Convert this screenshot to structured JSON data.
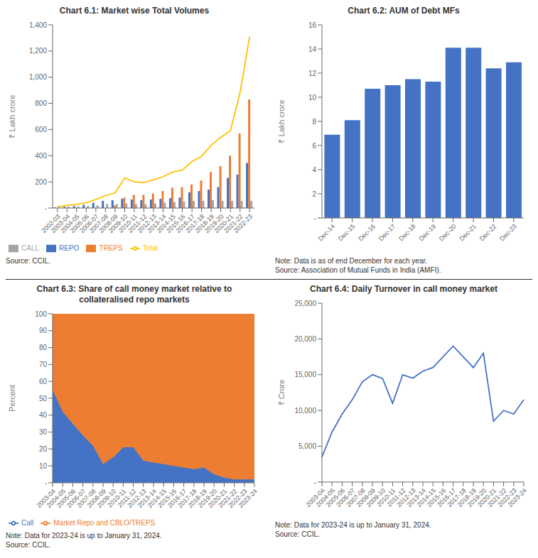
{
  "chart_data": [
    {
      "type": "bar",
      "title": "Chart 6.1: Market wise Total Volumes",
      "y_label": "₹ Lakh crore",
      "annotations": [
        "Source: CCIL."
      ],
      "categories": [
        "2002-03",
        "2003-04",
        "2004-05",
        "2005-06",
        "2006-07",
        "2007-08",
        "2008-09",
        "2009-10",
        "2010-11",
        "2011-12",
        "2012-13",
        "2013-14",
        "2014-15",
        "2015-16",
        "2016-17",
        "2017-18",
        "2018-19",
        "2019-20",
        "2020-21",
        "2021-22",
        "2022-23"
      ],
      "series": [
        {
          "name": "REPO",
          "type": "bar",
          "color": "#4472C4",
          "values": [
            5,
            10,
            15,
            25,
            40,
            55,
            60,
            70,
            65,
            60,
            65,
            70,
            75,
            80,
            120,
            130,
            140,
            160,
            230,
            255,
            345
          ]
        },
        {
          "name": "TREPS",
          "type": "bar",
          "color": "#ED7D31",
          "values": [
            0,
            0,
            0,
            0,
            0,
            0,
            20,
            80,
            100,
            100,
            110,
            130,
            155,
            160,
            180,
            210,
            275,
            320,
            400,
            570,
            830
          ]
        },
        {
          "name": "CALL",
          "type": "bar",
          "color": "#A5A5A5",
          "values": [
            5,
            10,
            12,
            15,
            20,
            30,
            30,
            35,
            30,
            30,
            35,
            40,
            45,
            50,
            55,
            55,
            60,
            55,
            55,
            55,
            55
          ]
        },
        {
          "name": "Total",
          "type": "line",
          "color": "#FFC000",
          "values": [
            10,
            20,
            28,
            40,
            65,
            95,
            115,
            230,
            200,
            195,
            215,
            240,
            275,
            290,
            355,
            395,
            480,
            540,
            590,
            880,
            1310
          ]
        }
      ],
      "ylim": [
        0,
        1400
      ],
      "yticks": [
        {
          "value": 0,
          "label": "-"
        },
        200,
        400,
        600,
        800,
        {
          "value": 1000,
          "label": "1,000"
        },
        {
          "value": 1200,
          "label": "1,200"
        },
        {
          "value": 1400,
          "label": "1,400"
        }
      ],
      "legend": "bottom",
      "grid": false
    },
    {
      "type": "bar",
      "title": "Chart 6.2: AUM of Debt MFs",
      "y_label": "₹ Lakh crore",
      "annotations": [
        "Note: Data is as of end December for each year.",
        "Source: Association of Mutual Funds in India (AMFI)."
      ],
      "categories": [
        "Dec-14",
        "Dec-15",
        "Dec-16",
        "Dec-17",
        "Dec-18",
        "Dec-19",
        "Dec-20",
        "Dec-21",
        "Dec-22",
        "Dec-23"
      ],
      "values": [
        6.9,
        8.1,
        10.7,
        11.0,
        11.5,
        11.3,
        14.1,
        14.1,
        12.4,
        12.9
      ],
      "color": "#4472C4",
      "ylim": [
        0,
        16
      ],
      "yticks": [
        {
          "value": 0,
          "label": "-"
        },
        2,
        4,
        6,
        8,
        10,
        12,
        14,
        16
      ],
      "grid": false
    },
    {
      "type": "area",
      "title": "Chart 6.3: Share of call money market relative to\ncollateralised repo markets",
      "y_label": "Percent",
      "annotations": [
        "Note: Data for 2023-24 is up to January 31, 2024.",
        "Source: CCIL."
      ],
      "categories": [
        "2003-04",
        "2004-05",
        "2005-06",
        "2006-07",
        "2007-08",
        "2008-09",
        "2009-10",
        "2010-11",
        "2011-12",
        "2012-13",
        "2013-14",
        "2014-15",
        "2015-16",
        "2016-17",
        "2017-18",
        "2018-19",
        "2019-20",
        "2020-21",
        "2021-22",
        "2022-23",
        "2023-24"
      ],
      "series": [
        {
          "name": "Call",
          "color": "#4472C4",
          "values": [
            55,
            42,
            35,
            28,
            22,
            11,
            15,
            21,
            21,
            13,
            12,
            11,
            10,
            9,
            8,
            9,
            5,
            3,
            2,
            2,
            2
          ]
        },
        {
          "name": "Market Repo and CBLO/TREPS",
          "color": "#ED7D31",
          "values": [
            45,
            58,
            65,
            72,
            78,
            89,
            85,
            79,
            79,
            87,
            88,
            89,
            90,
            91,
            92,
            91,
            95,
            97,
            98,
            98,
            98
          ]
        }
      ],
      "stacked": true,
      "ylim": [
        0,
        100
      ],
      "yticks": [
        {
          "value": 0,
          "label": "-"
        },
        10,
        20,
        30,
        40,
        50,
        60,
        70,
        80,
        90,
        100
      ],
      "legend": "bottom",
      "grid": false
    },
    {
      "type": "line",
      "title": "Chart 6.4: Daily Turnover in call money market",
      "y_label": "₹ Crore",
      "annotations": [
        "Note: Data for 2023-24 is up to January 31, 2024.",
        "Source: CCIL."
      ],
      "categories": [
        "2003-04",
        "2004-05",
        "2005-06",
        "2006-07",
        "2007-08",
        "2008-09",
        "2009-10",
        "2010-11",
        "2011-12",
        "2012-13",
        "2013-14",
        "2014-15",
        "2015-16",
        "2016-17",
        "2017-18",
        "2018-19",
        "2019-20",
        "2020-21",
        "2021-22",
        "2022-23",
        "2023-24"
      ],
      "values": [
        3500,
        7000,
        9500,
        11500,
        14000,
        15000,
        14500,
        11000,
        15000,
        14500,
        15500,
        16000,
        17500,
        19000,
        17500,
        16000,
        18000,
        8500,
        10000,
        9500,
        11500
      ],
      "color": "#4472C4",
      "ylim": [
        0,
        25000
      ],
      "yticks": [
        {
          "value": 0,
          "label": "-"
        },
        {
          "value": 5000,
          "label": "5,000"
        },
        {
          "value": 10000,
          "label": "10,000"
        },
        {
          "value": 15000,
          "label": "15,000"
        },
        {
          "value": 20000,
          "label": "20,000"
        },
        {
          "value": 25000,
          "label": "25,000"
        }
      ],
      "grid": false
    }
  ]
}
